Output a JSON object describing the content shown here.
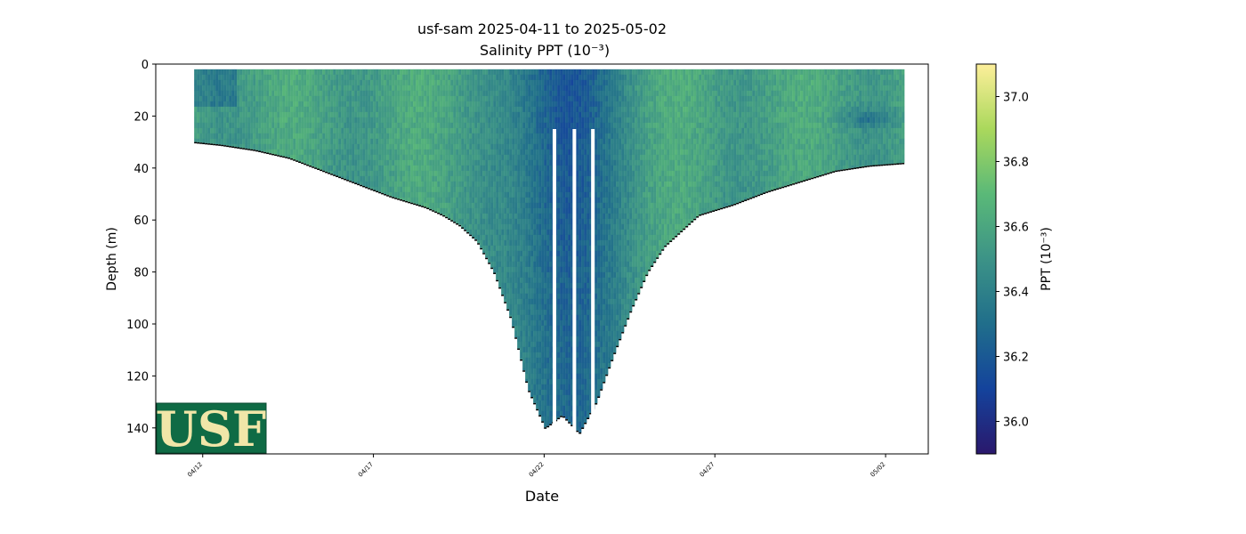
{
  "chart_data": {
    "type": "heatmap",
    "title": "usf-sam 2025-04-11 to 2025-05-02",
    "subtitle": "Salinity PPT (10⁻³)",
    "xlabel": "Date",
    "ylabel": "Depth (m)",
    "x_tick_labels": [
      "04/12",
      "04/17",
      "04/22",
      "04/27",
      "05/02"
    ],
    "x_tick_dates": [
      "2025-04-12",
      "2025-04-17",
      "2025-04-22",
      "2025-04-27",
      "2025-05-02"
    ],
    "xlim": [
      "2025-04-10T15:00",
      "2025-05-03T06:00"
    ],
    "y_tick_labels": [
      "0",
      "20",
      "40",
      "60",
      "80",
      "100",
      "120",
      "140"
    ],
    "y_ticks": [
      0,
      20,
      40,
      60,
      80,
      100,
      120,
      140
    ],
    "ylim": [
      150,
      0
    ],
    "y_inverted": true,
    "colorbar": {
      "label": "PPT (10⁻³)",
      "range": [
        35.9,
        37.1
      ],
      "ticks": [
        36.0,
        36.2,
        36.4,
        36.6,
        36.8,
        37.0
      ],
      "tick_labels": [
        "36.0",
        "36.2",
        "36.4",
        "36.6",
        "36.8",
        "37.0"
      ],
      "colormap": "haline",
      "colors": [
        "#2a186c",
        "#14439c",
        "#206e8b",
        "#3c9387",
        "#5ab978",
        "#aad85c",
        "#fdef9a"
      ]
    },
    "profile_bottom_depth": {
      "dates": [
        "2025-04-11T18:00",
        "2025-04-12T12:00",
        "2025-04-13T12:00",
        "2025-04-14T12:00",
        "2025-04-15T12:00",
        "2025-04-16T12:00",
        "2025-04-17T12:00",
        "2025-04-18T12:00",
        "2025-04-19T00:00",
        "2025-04-19T12:00",
        "2025-04-20T00:00",
        "2025-04-20T12:00",
        "2025-04-21T00:00",
        "2025-04-21T12:00",
        "2025-04-22T00:00",
        "2025-04-22T12:00",
        "2025-04-23T00:00",
        "2025-04-23T12:00",
        "2025-04-24T00:00",
        "2025-04-24T12:00",
        "2025-04-25T00:00",
        "2025-04-25T12:00",
        "2025-04-26T00:00",
        "2025-04-26T12:00",
        "2025-04-27T12:00",
        "2025-04-28T12:00",
        "2025-04-29T12:00",
        "2025-04-30T12:00",
        "2025-05-01T12:00",
        "2025-05-02T12:00"
      ],
      "depth_m": [
        30,
        31,
        33,
        36,
        41,
        46,
        51,
        55,
        58,
        62,
        68,
        80,
        98,
        125,
        140,
        135,
        142,
        130,
        112,
        95,
        80,
        70,
        64,
        58,
        54,
        49,
        45,
        41,
        39,
        38
      ]
    },
    "surface_depth_m": 2,
    "logo": "USF"
  }
}
